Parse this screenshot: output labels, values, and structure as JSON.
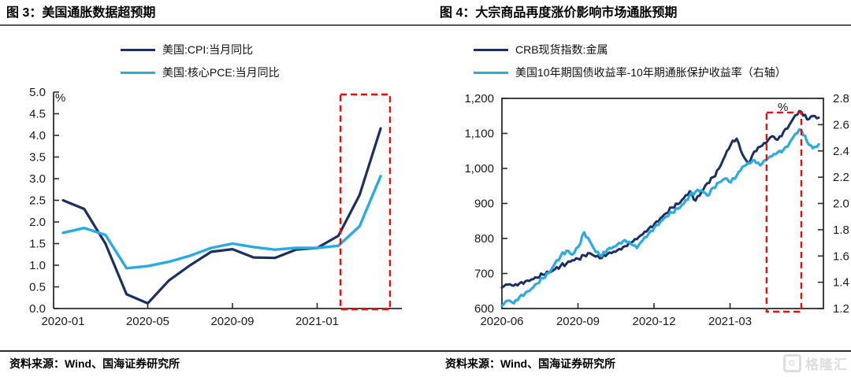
{
  "panels": [
    {
      "figure_label": "图 3",
      "title": "图 3：美国通胀数据超预期",
      "source": "资料来源：Wind、国海证券研究所",
      "legend": [
        {
          "label": "美国:CPI:当月同比",
          "color": "#1a2f63"
        },
        {
          "label": "美国:核心PCE:当月同比",
          "color": "#29abe2"
        }
      ]
    },
    {
      "figure_label": "图 4",
      "title": "图 4：大宗商品再度涨价影响市场通胀预期",
      "source": "资料来源：Wind、国海证券研究所",
      "legend": [
        {
          "label": "CRB现货指数:金属",
          "color": "#1a2f63"
        },
        {
          "label": "美国10年期国债收益率-10年期通胀保护收益率（右轴）",
          "color": "#29abe2"
        }
      ]
    }
  ],
  "watermark": {
    "text": "格隆汇"
  },
  "colors": {
    "navy": "#1a2f63",
    "light_blue": "#29abe2",
    "highlight": "#fe0505",
    "axis": "#2b2b2b",
    "tick_text": "#1a1a1a"
  },
  "chart_data": [
    {
      "type": "line",
      "title": "美国通胀数据超预期",
      "x_unit": "month (0 = 2020-01)",
      "categories": [
        "2020-01",
        "2020-02",
        "2020-03",
        "2020-04",
        "2020-05",
        "2020-06",
        "2020-07",
        "2020-08",
        "2020-09",
        "2020-10",
        "2020-11",
        "2020-12",
        "2021-01",
        "2021-02",
        "2021-03",
        "2021-04"
      ],
      "x_ticks": [
        {
          "pos": 0,
          "label": "2020-01"
        },
        {
          "pos": 4,
          "label": "2020-05"
        },
        {
          "pos": 8,
          "label": "2020-09"
        },
        {
          "pos": 12,
          "label": "2021-01"
        }
      ],
      "y_ticks_left": [
        "0.0",
        "0.5",
        "1.0",
        "1.5",
        "2.0",
        "2.5",
        "3.0",
        "3.5",
        "4.0",
        "4.5",
        "5.0"
      ],
      "ylim": [
        0,
        5
      ],
      "percent_label": "%",
      "legend_position": "top",
      "grid": false,
      "series": [
        {
          "name": "美国:CPI:当月同比",
          "slug": "cpi-line",
          "axis": "left",
          "color": "#1a2f63",
          "width": 3.2,
          "x_start": 0,
          "x_end": 15,
          "values": [
            2.5,
            2.3,
            1.5,
            0.33,
            0.12,
            0.65,
            1.0,
            1.31,
            1.37,
            1.18,
            1.17,
            1.36,
            1.4,
            1.68,
            2.62,
            4.16
          ]
        },
        {
          "name": "美国:核心PCE:当月同比",
          "slug": "core-pce-line",
          "axis": "left",
          "color": "#29abe2",
          "width": 3.4,
          "x_start": 0,
          "x_end": 15,
          "values": [
            1.75,
            1.86,
            1.7,
            0.93,
            0.98,
            1.08,
            1.22,
            1.4,
            1.5,
            1.42,
            1.36,
            1.4,
            1.4,
            1.45,
            1.9,
            3.06
          ]
        }
      ],
      "highlight_box": {
        "x_from": 13.1,
        "x_to": 15.44,
        "style": "red-dashed"
      }
    },
    {
      "type": "line",
      "title": "大宗商品再度涨价影响市场通胀预期",
      "x_unit": "month (0 = 2020-06)",
      "x_ticks": [
        {
          "pos": 0,
          "label": "2020-06"
        },
        {
          "pos": 3,
          "label": "2020-09"
        },
        {
          "pos": 6,
          "label": "2020-12"
        },
        {
          "pos": 9,
          "label": "2021-03"
        }
      ],
      "y_ticks_left": [
        "600",
        "700",
        "800",
        "900",
        "1,000",
        "1,100",
        "1,200"
      ],
      "ylim_left": [
        600,
        1200
      ],
      "y_ticks_right": [
        "1.2",
        "1.4",
        "1.6",
        "1.8",
        "2.0",
        "2.2",
        "2.4",
        "2.6",
        "2.8"
      ],
      "ylim_right": [
        1.2,
        2.8
      ],
      "percent_label": "%",
      "legend_position": "top",
      "grid": false,
      "series": [
        {
          "name": "CRB现货指数:金属",
          "slug": "crb-metals-line",
          "axis": "left",
          "color": "#1a2f63",
          "width": 3.0,
          "x_start": 0,
          "x_end": 12.5,
          "values": [
            660,
            668,
            665,
            672,
            678,
            683,
            688,
            697,
            703,
            712,
            722,
            728,
            738,
            742,
            752,
            758,
            748,
            744,
            756,
            762,
            770,
            778,
            788,
            798,
            812,
            828,
            842,
            858,
            872,
            888,
            898,
            915,
            935,
            908,
            932,
            958,
            975,
            1000,
            1035,
            1068,
            1085,
            1040,
            1015,
            1048,
            1062,
            1072,
            1092,
            1082,
            1105,
            1125,
            1152,
            1162,
            1140,
            1150,
            1145
          ]
        },
        {
          "name": "美国10年期国债收益率-10年期通胀保护收益率（右轴）",
          "slug": "breakeven-yield-line",
          "axis": "right",
          "color": "#29abe2",
          "width": 3.2,
          "x_start": 0,
          "x_end": 12.5,
          "values": [
            1.22,
            1.26,
            1.24,
            1.29,
            1.32,
            1.35,
            1.39,
            1.43,
            1.47,
            1.54,
            1.6,
            1.64,
            1.61,
            1.67,
            1.78,
            1.71,
            1.63,
            1.6,
            1.65,
            1.67,
            1.7,
            1.72,
            1.69,
            1.66,
            1.72,
            1.77,
            1.82,
            1.86,
            1.9,
            1.93,
            1.96,
            2.0,
            2.06,
            2.09,
            2.1,
            2.06,
            2.12,
            2.16,
            2.19,
            2.16,
            2.21,
            2.28,
            2.31,
            2.33,
            2.29,
            2.33,
            2.36,
            2.39,
            2.41,
            2.46,
            2.53,
            2.56,
            2.47,
            2.42,
            2.45
          ]
        }
      ],
      "highlight_box": {
        "x_from": 10.44,
        "x_to": 11.81,
        "style": "red-dashed"
      }
    }
  ]
}
